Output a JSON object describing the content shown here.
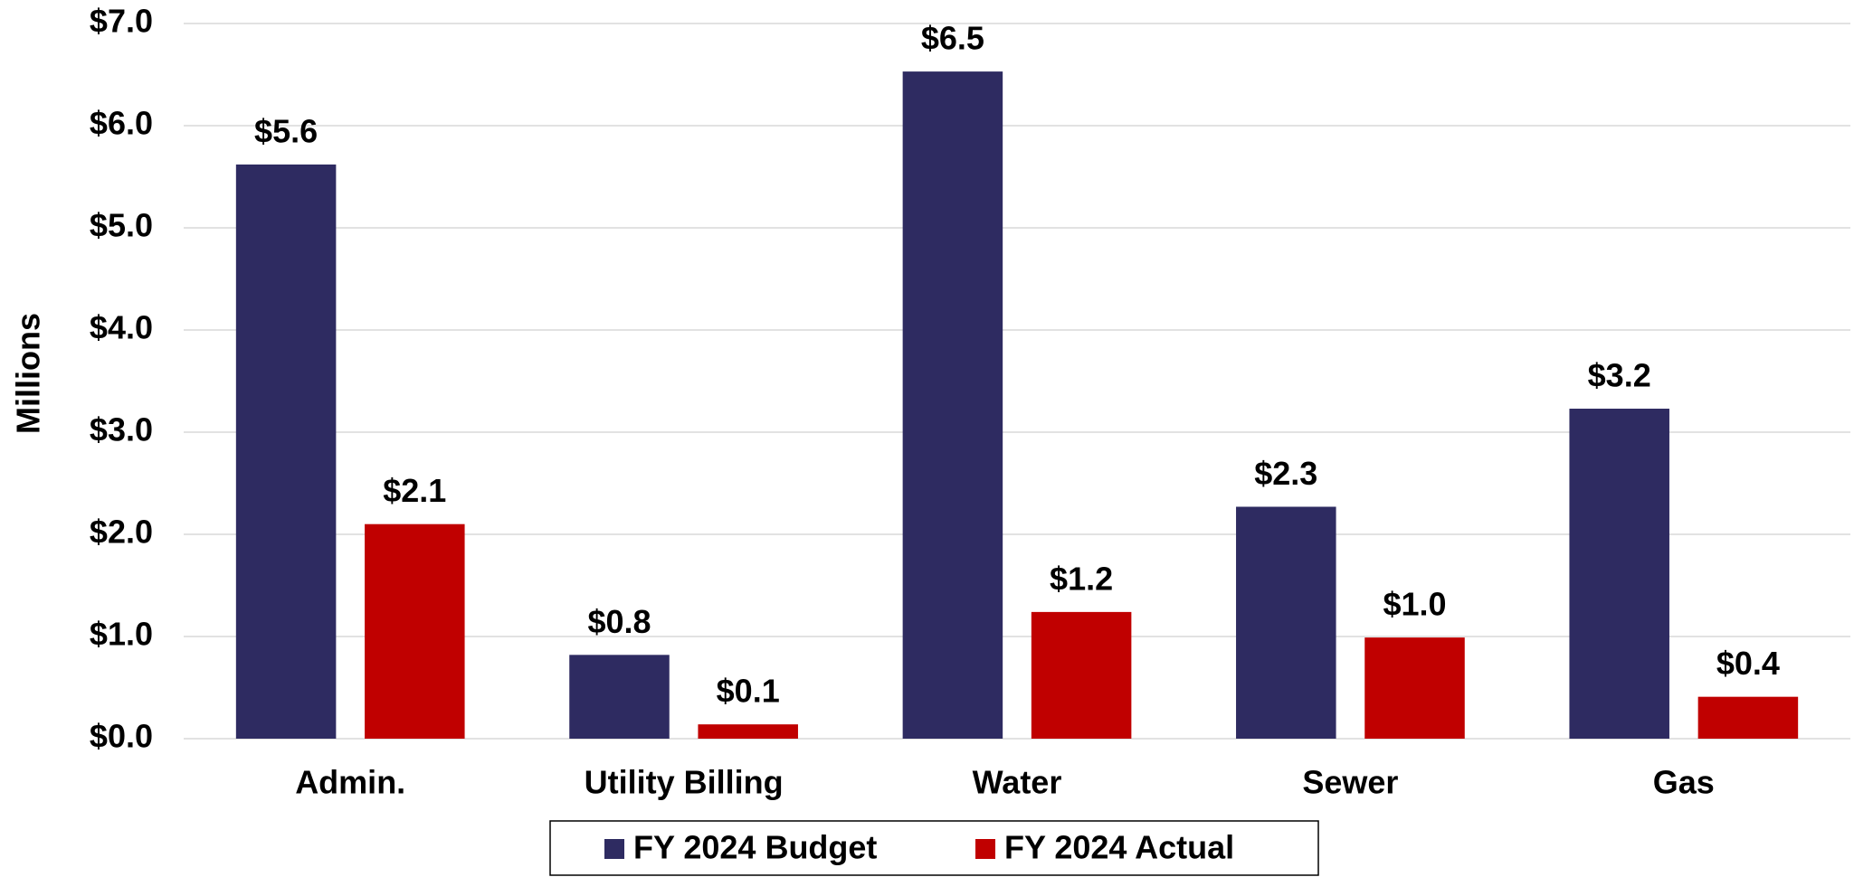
{
  "chart_data": {
    "type": "bar",
    "y_label": "Millions",
    "categories": [
      "Admin.",
      "Utility Billing",
      "Water",
      "Sewer",
      "Gas"
    ],
    "series": [
      {
        "name": "FY 2024 Budget",
        "color": "#2e2b61",
        "values": [
          5.62,
          0.82,
          6.53,
          2.27,
          3.23
        ],
        "value_labels": [
          "$5.6",
          "$0.8",
          "$6.5",
          "$2.3",
          "$3.2"
        ]
      },
      {
        "name": "FY 2024 Actual",
        "color": "#c00000",
        "values": [
          2.1,
          0.14,
          1.24,
          0.99,
          0.41
        ],
        "value_labels": [
          "$2.1",
          "$0.1",
          "$1.2",
          "$1.0",
          "$0.4"
        ]
      }
    ],
    "ylim": [
      0,
      7
    ],
    "yticks": [
      {
        "value": 0,
        "label": "$0.0"
      },
      {
        "value": 1,
        "label": "$1.0"
      },
      {
        "value": 2,
        "label": "$2.0"
      },
      {
        "value": 3,
        "label": "$3.0"
      },
      {
        "value": 4,
        "label": "$4.0"
      },
      {
        "value": 5,
        "label": "$5.0"
      },
      {
        "value": 6,
        "label": "$6.0"
      },
      {
        "value": 7,
        "label": "$7.0"
      }
    ],
    "grid": true,
    "legend": "bottom"
  }
}
